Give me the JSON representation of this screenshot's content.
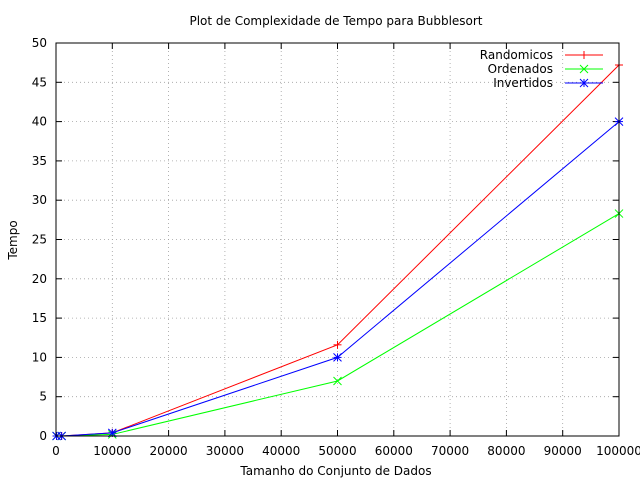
{
  "chart_data": {
    "type": "line",
    "title": "Plot de Complexidade de Tempo para Bubblesort",
    "xlabel": "Tamanho do Conjunto de Dados",
    "ylabel": "Tempo",
    "xlim": [
      0,
      100000
    ],
    "ylim": [
      0,
      50
    ],
    "x_ticks": [
      0,
      10000,
      20000,
      30000,
      40000,
      50000,
      60000,
      70000,
      80000,
      90000,
      100000
    ],
    "y_ticks": [
      0,
      5,
      10,
      15,
      20,
      25,
      30,
      35,
      40,
      45,
      50
    ],
    "grid": true,
    "legend_position": "top-right",
    "x": [
      100,
      1000,
      10000,
      50000,
      100000
    ],
    "series": [
      {
        "name": "Randomicos",
        "color": "#ff0000",
        "marker": "plus",
        "values": [
          0.0,
          0.0,
          0.4,
          11.6,
          47.2
        ]
      },
      {
        "name": "Ordenados",
        "color": "#00ff00",
        "marker": "cross",
        "values": [
          0.0,
          0.0,
          0.2,
          7.0,
          28.3
        ]
      },
      {
        "name": "Invertidos",
        "color": "#0000ff",
        "marker": "star",
        "values": [
          0.0,
          0.0,
          0.4,
          10.0,
          40.0
        ]
      }
    ]
  }
}
